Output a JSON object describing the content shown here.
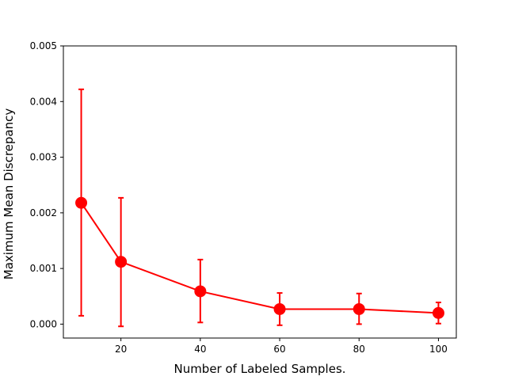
{
  "chart_data": {
    "type": "line",
    "xlabel": "Number of Labeled Samples.",
    "ylabel": "Maximum Mean Discrepancy",
    "xlim": [
      5.5,
      104.5
    ],
    "ylim": [
      -0.00025,
      0.005
    ],
    "x_ticks": [
      20,
      40,
      60,
      80,
      100
    ],
    "y_ticks": [
      0.0,
      0.001,
      0.002,
      0.003,
      0.004,
      0.005
    ],
    "x_tick_labels": [
      "20",
      "40",
      "60",
      "80",
      "100"
    ],
    "y_tick_labels": [
      "0.000",
      "0.001",
      "0.002",
      "0.003",
      "0.004",
      "0.005"
    ],
    "grid": false,
    "legend": "none",
    "series": [
      {
        "color": "#ff0000",
        "marker": "circle",
        "error_bars": true,
        "points": [
          {
            "x": 10,
            "y": 0.00218,
            "err_low": 0.00015,
            "err_high": 0.00422
          },
          {
            "x": 20,
            "y": 0.00112,
            "err_low": -4e-05,
            "err_high": 0.00227
          },
          {
            "x": 40,
            "y": 0.00059,
            "err_low": 3e-05,
            "err_high": 0.00116
          },
          {
            "x": 60,
            "y": 0.00027,
            "err_low": -2e-05,
            "err_high": 0.00056
          },
          {
            "x": 80,
            "y": 0.00027,
            "err_low": 0.0,
            "err_high": 0.00055
          },
          {
            "x": 100,
            "y": 0.0002,
            "err_low": 1e-05,
            "err_high": 0.00039
          }
        ]
      }
    ]
  }
}
